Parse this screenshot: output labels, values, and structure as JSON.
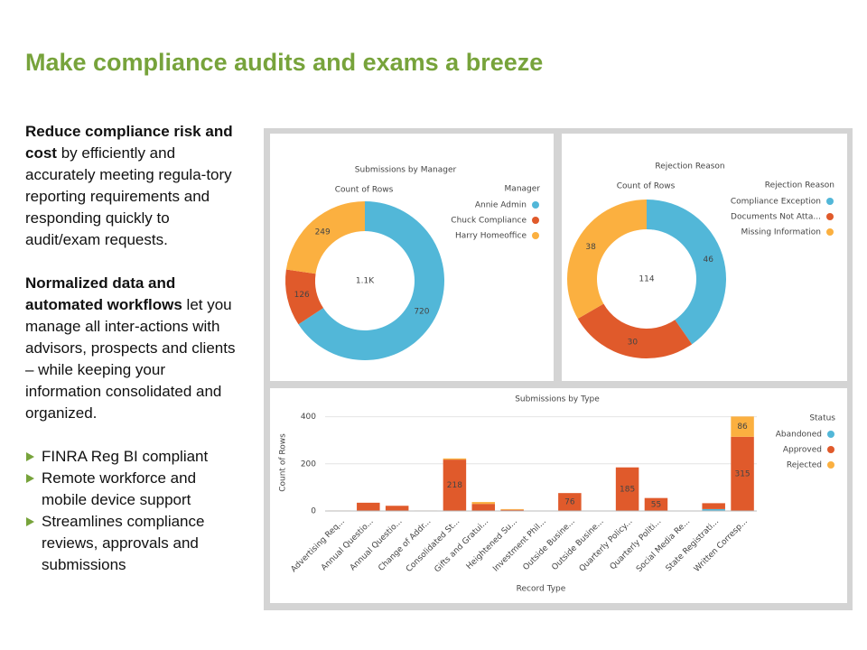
{
  "title": "Make compliance audits and exams a breeze",
  "paragraphs": [
    {
      "bold": "Reduce compliance risk and cost",
      "text": "by efficiently and accurately meeting regula-tory reporting requirements and responding quickly to audit/exam requests."
    },
    {
      "bold": "Normalized data and automated workflows",
      "text": "let you manage all inter-actions with advisors, prospects and clients – while keeping your information consolidated and organized."
    }
  ],
  "bullets": [
    "FINRA Reg BI compliant",
    "Remote workforce and mobile device support",
    "Streamlines compliance reviews, approvals and submissions"
  ],
  "chart_data": [
    {
      "type": "donut",
      "title": "Submissions by Manager",
      "subtitle": "Count of Rows",
      "center_label": "1.1K",
      "legend_title": "Manager",
      "categories": [
        "Annie Admin",
        "Chuck Compliance",
        "Harry Homeoffice"
      ],
      "values": [
        720,
        126,
        249
      ],
      "colors": [
        "#52b7d8",
        "#e05a2b",
        "#fbb040"
      ]
    },
    {
      "type": "donut",
      "title": "Rejection Reason",
      "subtitle": "Count of Rows",
      "center_label": "114",
      "legend_title": "Rejection Reason",
      "categories": [
        "Compliance Exception",
        "Documents Not Atta...",
        "Missing Information"
      ],
      "values": [
        46,
        30,
        38
      ],
      "colors": [
        "#52b7d8",
        "#e05a2b",
        "#fbb040"
      ]
    },
    {
      "type": "stacked_bar",
      "title": "Submissions by Type",
      "y_label": "Count of Rows",
      "x_label": "Record Type",
      "legend_title": "Status",
      "categories": [
        "Advertising Req...",
        "Annual Questio...",
        "Annual Questio...",
        "Change of Addr...",
        "Consolidated St...",
        "Gifts and Gratui...",
        "Heightened Su...",
        "Investment Phil...",
        "Outside Busine...",
        "Outside Busine...",
        "Quarterly Policy...",
        "Quarterly Politi...",
        "Social Media Re...",
        "State Registrati...",
        "Written Corresp..."
      ],
      "series": [
        {
          "name": "Abandoned",
          "color": "#52b7d8",
          "values": [
            0,
            0,
            0,
            0,
            0,
            0,
            0,
            0,
            0,
            0,
            0,
            0,
            0,
            8,
            0
          ]
        },
        {
          "name": "Approved",
          "color": "#e05a2b",
          "values": [
            2,
            35,
            22,
            2,
            218,
            30,
            5,
            0,
            76,
            0,
            185,
            55,
            0,
            25,
            315
          ]
        },
        {
          "name": "Rejected",
          "color": "#fbb040",
          "values": [
            0,
            0,
            0,
            0,
            5,
            8,
            3,
            0,
            0,
            0,
            0,
            0,
            0,
            0,
            86
          ]
        }
      ],
      "ylim": [
        0,
        410
      ],
      "yticks": [
        0,
        200,
        400
      ],
      "grid": true
    }
  ]
}
